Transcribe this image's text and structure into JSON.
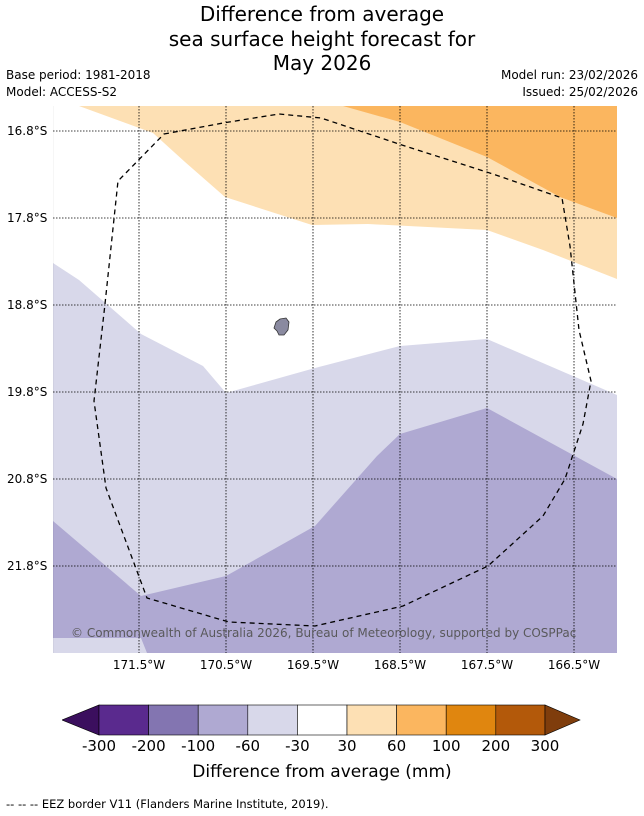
{
  "title": {
    "line1": "Difference from average",
    "line2": "sea surface height forecast for",
    "line3": "May 2026"
  },
  "meta": {
    "base_period": "Base period: 1981-2018",
    "model": "Model: ACCESS-S2",
    "model_run": "Model run: 23/02/2026",
    "issued": "Issued: 25/02/2026"
  },
  "axes": {
    "latitudes": [
      "16.8°S",
      "17.8°S",
      "18.8°S",
      "19.8°S",
      "20.8°S",
      "21.8°S"
    ],
    "longitudes": [
      "171.5°W",
      "170.5°W",
      "169.5°W",
      "168.5°W",
      "167.5°W",
      "166.5°W"
    ]
  },
  "copyright": "© Commonwealth of Australia 2026, Bureau of Meteorology, supported by COSPPac",
  "colorbar": {
    "ticks": [
      "-300",
      "-200",
      "-100",
      "-60",
      "-30",
      "30",
      "60",
      "100",
      "200",
      "300"
    ],
    "colors": [
      "#3b0f5e",
      "#5a2a8e",
      "#8375b1",
      "#afa9d2",
      "#d8d8ea",
      "#ffffff",
      "#fde0b4",
      "#fbb65f",
      "#e0860f",
      "#b3590a",
      "#7f3d0c"
    ],
    "label": "Difference from average (mm)"
  },
  "legend_note": "--  --  -- EEZ border V11 (Flanders Marine Institute, 2019)."
}
